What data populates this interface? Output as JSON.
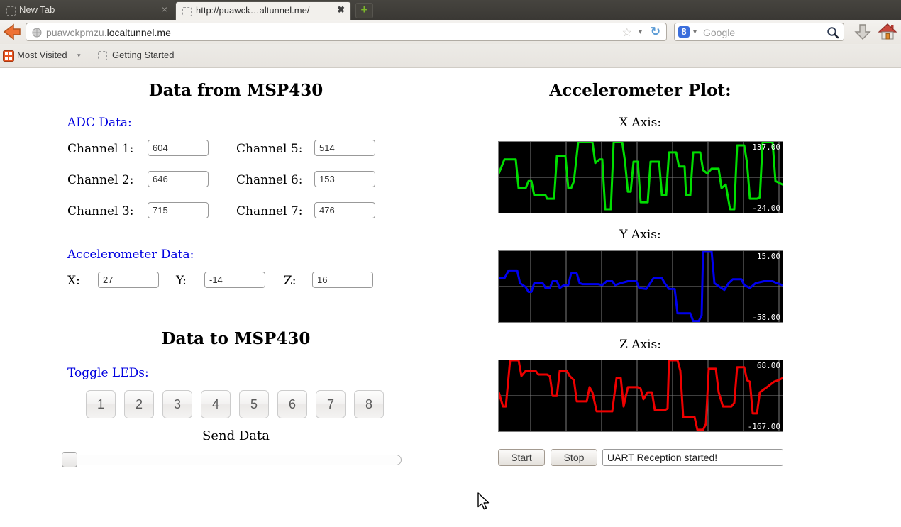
{
  "browser": {
    "tabs": [
      {
        "title": "New Tab",
        "active": false
      },
      {
        "title": "http://puawck…altunnel.me/",
        "active": true
      }
    ],
    "url": {
      "prefix": "puawckpmzu.",
      "domain": "localtunnel.me"
    },
    "search": {
      "placeholder": "Google"
    },
    "bookmarks": {
      "most_visited": "Most Visited",
      "getting_started": "Getting Started"
    }
  },
  "glyphs": {
    "close": "×",
    "close_active": "✖",
    "plus": "+",
    "caret": "▾",
    "star": "☆",
    "reload": "↻",
    "google_badge": "8"
  },
  "page": {
    "left": {
      "title": "Data from MSP430",
      "adc": {
        "heading": "ADC Data:",
        "channels": [
          {
            "label": "Channel 1:",
            "value": "604"
          },
          {
            "label": "Channel 2:",
            "value": "646"
          },
          {
            "label": "Channel 3:",
            "value": "715"
          },
          {
            "label": "Channel 5:",
            "value": "514"
          },
          {
            "label": "Channel 6:",
            "value": "153"
          },
          {
            "label": "Channel 7:",
            "value": "476"
          }
        ]
      },
      "accel": {
        "heading": "Accelerometer Data:",
        "fields": [
          {
            "label": "X:",
            "value": "27"
          },
          {
            "label": "Y:",
            "value": "-14"
          },
          {
            "label": "Z:",
            "value": "16"
          }
        ]
      },
      "to_msp": {
        "title": "Data to MSP430",
        "leds_heading": "Toggle LEDs:",
        "led_buttons": [
          "1",
          "2",
          "3",
          "4",
          "5",
          "6",
          "7",
          "8"
        ],
        "send_label": "Send Data"
      }
    },
    "right": {
      "title": "Accelerometer Plot:",
      "controls": {
        "start": "Start",
        "stop": "Stop",
        "status": "UART Reception started!"
      }
    }
  },
  "chart_data": [
    {
      "type": "line",
      "title": "X Axis:",
      "color": "#00dd00",
      "bg": "#000000",
      "ymax": 137.0,
      "ymin": -24.0,
      "ymax_label": "137.00",
      "ymin_label": "-24.00",
      "grid": {
        "v_start": 45,
        "v_step": 50,
        "h_mid": true,
        "color": "#7d7d7d"
      },
      "x": [
        0,
        8,
        24,
        28,
        38,
        42,
        46,
        50,
        66,
        68,
        78,
        82,
        94,
        98,
        102,
        106,
        112,
        132,
        136,
        142,
        146,
        150,
        158,
        162,
        174,
        178,
        182,
        186,
        190,
        196,
        200,
        210,
        214,
        226,
        230,
        236,
        240,
        250,
        254,
        262,
        264,
        270,
        274,
        284,
        288,
        294,
        300,
        310,
        314,
        320,
        326,
        332,
        336,
        346,
        350,
        354,
        364,
        368,
        372,
        386,
        390,
        400
      ],
      "values": [
        65,
        97,
        97,
        32,
        32,
        48,
        48,
        16,
        16,
        8,
        8,
        105,
        105,
        32,
        32,
        48,
        137,
        137,
        89,
        97,
        97,
        -16,
        -16,
        137,
        137,
        92,
        24,
        24,
        92,
        92,
        0,
        0,
        92,
        92,
        16,
        16,
        113,
        113,
        81,
        81,
        16,
        16,
        113,
        113,
        73,
        65,
        76,
        76,
        32,
        40,
        -16,
        -16,
        129,
        129,
        89,
        8,
        8,
        11,
        137,
        137,
        48,
        40
      ]
    },
    {
      "type": "line",
      "title": "Y Axis:",
      "color": "#0000ee",
      "bg": "#000000",
      "ymax": 15.0,
      "ymin": -58.0,
      "ymax_label": "15.00",
      "ymin_label": "-58.00",
      "grid": {
        "v_start": 45,
        "v_step": 50,
        "h_mid": true,
        "color": "#7d7d7d"
      },
      "x": [
        0,
        8,
        14,
        26,
        30,
        38,
        42,
        46,
        50,
        62,
        66,
        72,
        76,
        82,
        86,
        92,
        98,
        102,
        110,
        114,
        118,
        140,
        146,
        152,
        160,
        164,
        172,
        182,
        194,
        198,
        208,
        218,
        230,
        234,
        240,
        248,
        252,
        270,
        274,
        282,
        286,
        288,
        300,
        304,
        312,
        318,
        324,
        330,
        342,
        346,
        354,
        362,
        374,
        386,
        392,
        400
      ],
      "values": [
        -13,
        -13,
        -5,
        -5,
        -18,
        -22,
        -27,
        -27,
        -18,
        -18,
        -23,
        -23,
        -16,
        -16,
        -23,
        -20,
        -20,
        -8,
        -8,
        -18,
        -19,
        -19,
        -20,
        -16,
        -16,
        -20,
        -18,
        -16,
        -16,
        -23,
        -24,
        -13,
        -13,
        -18,
        -24,
        -24,
        -49,
        -49,
        -57,
        -57,
        -51,
        15,
        15,
        -18,
        -22,
        -25,
        -18,
        -14,
        -14,
        -20,
        -23,
        -18,
        -16,
        -16,
        -18,
        -20
      ]
    },
    {
      "type": "line",
      "title": "Z Axis:",
      "color": "#ee0000",
      "bg": "#000000",
      "ymax": 68.0,
      "ymin": -167.0,
      "ymax_label": "68.00",
      "ymin_label": "-167.00",
      "grid": {
        "v_start": 45,
        "v_step": 50,
        "h_mid": true,
        "color": "#7d7d7d"
      },
      "x": [
        0,
        6,
        10,
        16,
        28,
        32,
        38,
        52,
        56,
        68,
        72,
        76,
        82,
        86,
        96,
        100,
        106,
        110,
        124,
        128,
        132,
        138,
        160,
        166,
        172,
        176,
        182,
        196,
        200,
        204,
        210,
        216,
        220,
        234,
        238,
        240,
        252,
        256,
        260,
        276,
        280,
        288,
        292,
        296,
        306,
        310,
        316,
        328,
        332,
        336,
        346,
        350,
        354,
        358,
        364,
        368,
        378,
        388,
        394,
        400
      ],
      "values": [
        -38,
        -85,
        -85,
        68,
        68,
        16,
        33,
        33,
        21,
        21,
        16,
        -50,
        -50,
        33,
        33,
        16,
        2,
        -68,
        -68,
        -21,
        -38,
        -101,
        -101,
        9,
        9,
        -85,
        -21,
        -21,
        -26,
        -61,
        -38,
        -38,
        -97,
        -97,
        -92,
        68,
        68,
        33,
        -120,
        -120,
        -162,
        -162,
        -143,
        40,
        40,
        -38,
        -85,
        -85,
        -73,
        45,
        45,
        2,
        -3,
        -108,
        -108,
        -38,
        -21,
        -3,
        2,
        9
      ]
    }
  ]
}
